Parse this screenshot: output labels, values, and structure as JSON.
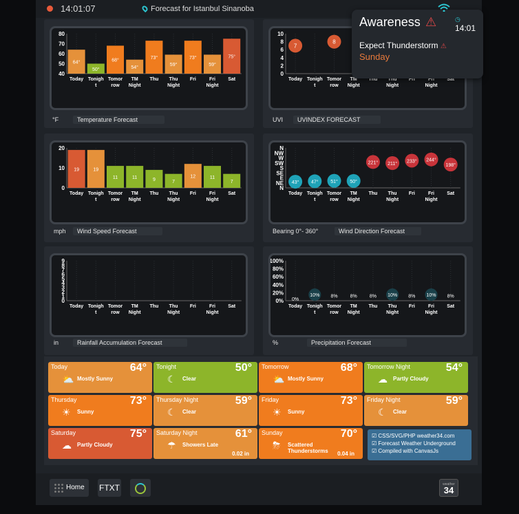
{
  "topbar": {
    "time": "14:01:07",
    "location": "Forecast for Istanbul Sinanoba"
  },
  "popup": {
    "title": "Awareness",
    "time": "14:01",
    "expect": "Expect Thunderstorm",
    "day": "Sunday"
  },
  "days": [
    "Today",
    "Tonigh t",
    "Tomor row",
    "TM Night",
    "Thu",
    "Thu Night",
    "Fri",
    "Fri Night",
    "Sat"
  ],
  "panels": {
    "temperature": {
      "unit": "°F",
      "title": "Temperature Forecast"
    },
    "uvi": {
      "unit": "UVI",
      "title": "UVINDEX FORECAST"
    },
    "wind": {
      "unit": "mph",
      "title": "Wind Speed Forecast"
    },
    "direction": {
      "unit": "Bearing 0°- 360°",
      "title": "Wind Direction Forecast"
    },
    "rain": {
      "unit": "in",
      "title": "Rainfall Accumulation Forecast"
    },
    "precip": {
      "unit": "%",
      "title": "Precipitation Forecast"
    }
  },
  "chart_data": [
    {
      "type": "bar",
      "title": "Temperature Forecast",
      "ylabel": "°F",
      "ylim": [
        40,
        80
      ],
      "yticks": [
        80,
        70,
        60,
        50,
        40
      ],
      "categories": [
        "Today",
        "Tonight",
        "Tomorrow",
        "TM Night",
        "Thu",
        "Thu Night",
        "Fri",
        "Fri Night",
        "Sat"
      ],
      "values": [
        64,
        50,
        68,
        54,
        73,
        59,
        73,
        59,
        75
      ],
      "labels": [
        "64°",
        "50°",
        "68°",
        "54°",
        "73°",
        "59°",
        "73°",
        "59°",
        "75°"
      ],
      "colors": [
        "#e5913a",
        "#8db52a",
        "#f07c1e",
        "#e5913a",
        "#f07c1e",
        "#e5913a",
        "#f07c1e",
        "#e5913a",
        "#d85a33"
      ]
    },
    {
      "type": "scatter",
      "title": "UVINDEX FORECAST",
      "ylabel": "UVI",
      "ylim": [
        0,
        10
      ],
      "yticks": [
        10,
        8,
        6,
        4,
        2,
        0
      ],
      "categories": [
        "Today",
        "Tonight",
        "Tomorrow",
        "TM Night",
        "Thu",
        "Thu Night",
        "Fri",
        "Fri Night",
        "Sat"
      ],
      "points": [
        {
          "i": 0,
          "v": 7
        },
        {
          "i": 2,
          "v": 8
        }
      ],
      "color": "#d85a33"
    },
    {
      "type": "bar",
      "title": "Wind Speed Forecast",
      "ylabel": "mph",
      "ylim": [
        0,
        20
      ],
      "yticks": [
        20,
        10,
        0
      ],
      "categories": [
        "Today",
        "Tonight",
        "Tomorrow",
        "TM Night",
        "Thu",
        "Thu Night",
        "Fri",
        "Fri Night",
        "Sat"
      ],
      "values": [
        19,
        19,
        11,
        11,
        9,
        7,
        12,
        11,
        7
      ],
      "labels": [
        "19",
        "19",
        "11",
        "11",
        "9",
        "7",
        "12",
        "11",
        "7"
      ],
      "colors": [
        "#d85a33",
        "#e5913a",
        "#8db52a",
        "#8db52a",
        "#8db52a",
        "#8db52a",
        "#e5913a",
        "#8db52a",
        "#8db52a"
      ]
    },
    {
      "type": "scatter",
      "title": "Wind Direction Forecast",
      "ylabel": "Bearing 0°- 360°",
      "ylim": [
        0,
        360
      ],
      "yticks": [
        "N",
        "NW",
        "W",
        "SW",
        "S",
        "SE",
        "E",
        "NE",
        "N"
      ],
      "categories": [
        "Today",
        "Tonight",
        "Tomorrow",
        "TM Night",
        "Thu",
        "Thu Night",
        "Fri",
        "Fri Night",
        "Sat"
      ],
      "values": [
        43,
        47,
        51,
        50,
        221,
        211,
        233,
        244,
        198
      ],
      "labels": [
        "43°",
        "47°",
        "51°",
        "50°",
        "221°",
        "211°",
        "233°",
        "244°",
        "198°"
      ]
    },
    {
      "type": "bar",
      "title": "Rainfall Accumulation Forecast",
      "ylabel": "in",
      "ylim": [
        0,
        9
      ],
      "yticks": [
        9,
        8,
        7,
        6,
        5,
        4,
        3,
        2,
        1,
        0
      ],
      "categories": [
        "Today",
        "Tonight",
        "Tomorrow",
        "TM Night",
        "Thu",
        "Thu Night",
        "Fri",
        "Fri Night",
        "Sat"
      ],
      "values": [
        0,
        0,
        0,
        0,
        0,
        0,
        0,
        0,
        0
      ]
    },
    {
      "type": "scatter",
      "title": "Precipitation Forecast",
      "ylabel": "%",
      "ylim": [
        0,
        100
      ],
      "yticks": [
        "100%",
        "80%",
        "60%",
        "40%",
        "20%",
        "0%"
      ],
      "categories": [
        "Today",
        "Tonight",
        "Tomorrow",
        "TM Night",
        "Thu",
        "Thu Night",
        "Fri",
        "Fri Night",
        "Sat"
      ],
      "values": [
        0,
        10,
        8,
        8,
        8,
        10,
        8,
        10,
        8
      ],
      "labels": [
        "0%",
        "10%",
        "8%",
        "8%",
        "8%",
        "10%",
        "8%",
        "10%",
        "8%"
      ]
    }
  ],
  "forecast": [
    {
      "name": "Today",
      "temp": "64°",
      "cond": "Mostly Sunny",
      "icon": "partly-sunny-icon",
      "color": "#e5913a"
    },
    {
      "name": "Tonight",
      "temp": "50°",
      "cond": "Clear",
      "icon": "moon-icon",
      "color": "#8db52a"
    },
    {
      "name": "Tomorrow",
      "temp": "68°",
      "cond": "Mostly Sunny",
      "icon": "partly-sunny-icon",
      "color": "#f07c1e"
    },
    {
      "name": "Tomorrow Night",
      "temp": "54°",
      "cond": "Partly Cloudy",
      "icon": "cloud-icon",
      "color": "#8db52a"
    },
    {
      "name": "Thursday",
      "temp": "73°",
      "cond": "Sunny",
      "icon": "sun-icon",
      "color": "#f07c1e"
    },
    {
      "name": "Thursday Night",
      "temp": "59°",
      "cond": "Clear",
      "icon": "moon-icon",
      "color": "#e5913a"
    },
    {
      "name": "Friday",
      "temp": "73°",
      "cond": "Sunny",
      "icon": "sun-icon",
      "color": "#f07c1e"
    },
    {
      "name": "Friday Night",
      "temp": "59°",
      "cond": "Clear",
      "icon": "moon-icon",
      "color": "#e5913a"
    },
    {
      "name": "Saturday",
      "temp": "75°",
      "cond": "Partly Cloudy",
      "icon": "cloud-icon",
      "color": "#d85a33"
    },
    {
      "name": "Saturday Night",
      "temp": "61°",
      "cond": "Showers Late",
      "icon": "rain-cloud-icon",
      "color": "#e5913a",
      "rain": "0.02 in"
    },
    {
      "name": "Sunday",
      "temp": "70°",
      "cond": "Scattered Thunderstorms",
      "icon": "storm-cloud-icon",
      "color": "#f07c1e",
      "rain": "0.04 in"
    }
  ],
  "info": {
    "line1": "CSS/SVG/PHP weather34.com",
    "line2": "Forecast Weather Underground",
    "line3": "Compiled with CanvasJs"
  },
  "bottom": {
    "home": "Home",
    "ftxt": "FTXT",
    "logo_top": "weather",
    "logo_num": "34"
  }
}
